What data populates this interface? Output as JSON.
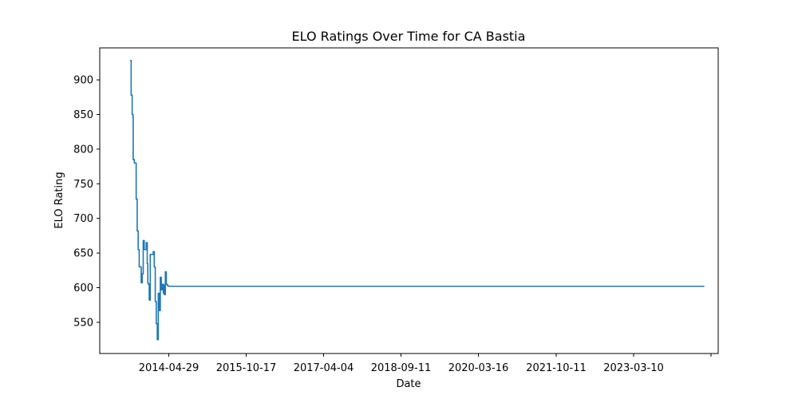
{
  "chart_data": {
    "type": "line",
    "title": "ELO Ratings Over Time for CA Bastia",
    "xlabel": "Date",
    "ylabel": "ELO Rating",
    "x_tick_labels": [
      "2014-04-29",
      "2015-10-17",
      "2017-04-04",
      "2018-09-11",
      "2020-03-16",
      "2021-10-11",
      "2023-03-10",
      ""
    ],
    "y_ticks": [
      550,
      600,
      650,
      700,
      750,
      800,
      850,
      900
    ],
    "series": [
      {
        "color": "#1f77b4",
        "x": [
          "2013-08-03",
          "2013-08-10",
          "2013-08-17",
          "2013-08-24",
          "2013-09-01",
          "2013-09-14",
          "2013-09-21",
          "2013-09-28",
          "2013-10-05",
          "2013-10-19",
          "2013-10-26",
          "2013-11-02",
          "2013-11-09",
          "2013-11-23",
          "2013-11-30",
          "2013-12-04",
          "2013-12-07",
          "2013-12-14",
          "2013-12-21",
          "2014-01-11",
          "2014-01-18",
          "2014-01-25",
          "2014-02-01",
          "2014-02-08",
          "2014-02-15",
          "2014-02-22",
          "2014-03-01",
          "2014-03-08",
          "2014-03-15",
          "2014-03-22",
          "2014-03-26",
          "2014-03-29",
          "2014-04-05",
          "2014-04-12",
          "2014-04-19",
          "2014-04-26",
          "2014-05-03",
          "2014-05-10",
          "2014-05-17",
          "2024-07-15"
        ],
        "y": [
          928,
          878,
          850,
          785,
          780,
          728,
          682,
          655,
          630,
          607,
          620,
          668,
          655,
          665,
          635,
          607,
          605,
          582,
          648,
          652,
          630,
          580,
          548,
          525,
          592,
          567,
          615,
          597,
          605,
          592,
          604,
          590,
          623,
          605,
          603,
          602,
          602,
          602,
          602,
          602
        ]
      }
    ]
  }
}
